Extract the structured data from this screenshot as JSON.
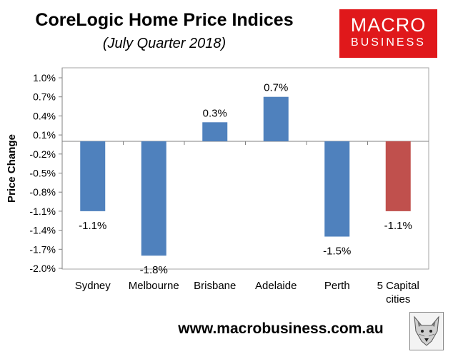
{
  "header": {
    "title": "CoreLogic Home Price Indices",
    "subtitle": "(July Quarter 2018)"
  },
  "logo": {
    "top": "MACRO",
    "bottom": "BUSINESS",
    "color": "#e0181b"
  },
  "footer": {
    "url": "www.macrobusiness.com.au",
    "badge_icon": "fox-icon"
  },
  "chart_data": {
    "type": "bar",
    "categories": [
      "Sydney",
      "Melbourne",
      "Brisbane",
      "Adelaide",
      "Perth",
      "5 Capital cities"
    ],
    "values": [
      -1.1,
      -1.8,
      0.3,
      0.7,
      -1.5,
      -1.1
    ],
    "data_labels": [
      "-1.1%",
      "-1.8%",
      "0.3%",
      "0.7%",
      "-1.5%",
      "-1.1%"
    ],
    "ylabel": "Price Change",
    "xlabel": "",
    "ylim": [
      -2.0,
      1.0
    ],
    "y_ticks": [
      1.0,
      0.7,
      0.4,
      0.1,
      -0.2,
      -0.5,
      -0.8,
      -1.1,
      -1.4,
      -1.7,
      -2.0
    ],
    "y_tick_labels": [
      "1.0%",
      "0.7%",
      "0.4%",
      "0.1%",
      "-0.2%",
      "-0.5%",
      "-0.8%",
      "-1.1%",
      "-1.4%",
      "-1.7%",
      "-2.0%"
    ],
    "colors": [
      "#4f81bd",
      "#4f81bd",
      "#4f81bd",
      "#4f81bd",
      "#4f81bd",
      "#c0504d"
    ],
    "grid": false,
    "legend": "none"
  }
}
